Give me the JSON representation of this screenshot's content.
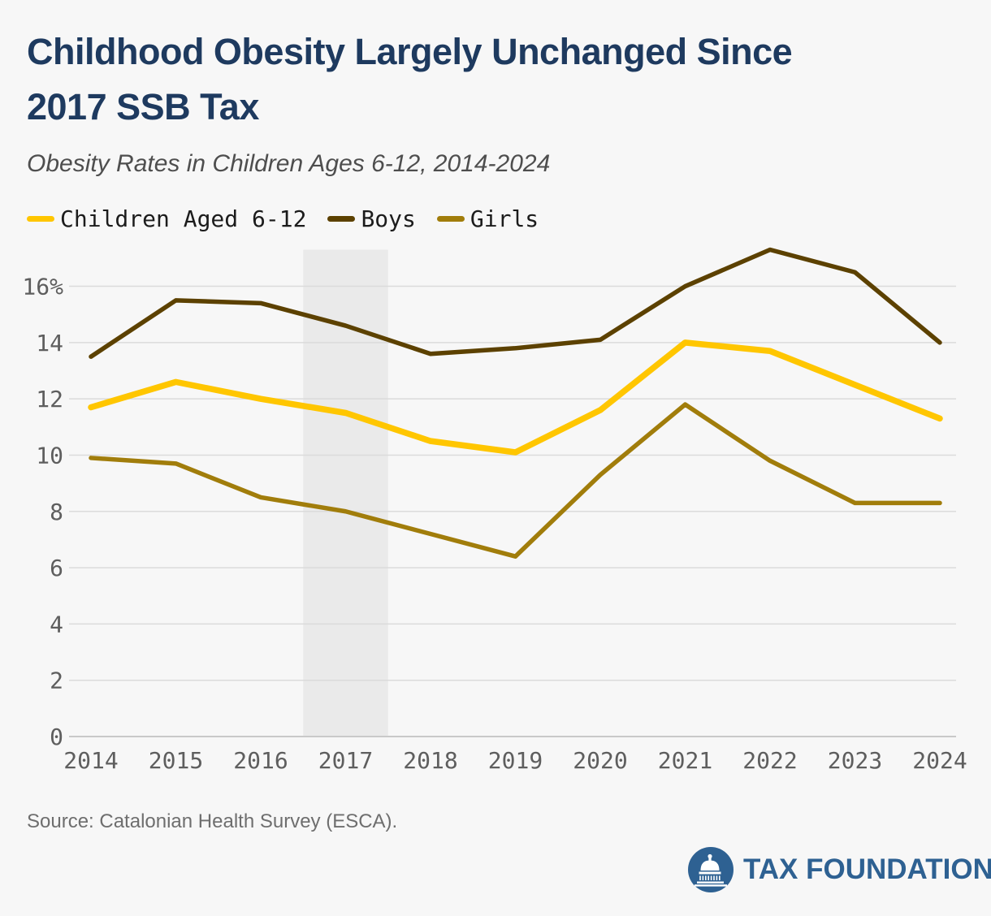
{
  "header": {
    "title_line1": "Childhood Obesity Largely Unchanged Since",
    "title_line2": "2017 SSB Tax",
    "subtitle": "Obesity Rates in Children Ages 6-12, 2014-2024"
  },
  "chart_data": {
    "type": "line",
    "title": "Childhood Obesity Largely Unchanged Since 2017 SSB Tax",
    "subtitle": "Obesity Rates in Children Ages 6-12, 2014-2024",
    "categories": [
      "2014",
      "2015",
      "2016",
      "2017",
      "2018",
      "2019",
      "2020",
      "2021",
      "2022",
      "2023",
      "2024"
    ],
    "series": [
      {
        "name": "Children Aged 6-12",
        "color": "#FFC600",
        "line_width": 7.5,
        "values": [
          11.7,
          12.6,
          12.0,
          11.5,
          10.5,
          10.1,
          11.6,
          14.0,
          13.7,
          12.5,
          11.3
        ]
      },
      {
        "name": "Boys",
        "color": "#5C4100",
        "line_width": 5.5,
        "values": [
          13.5,
          15.5,
          15.4,
          14.6,
          13.6,
          13.8,
          14.1,
          16.0,
          17.3,
          16.5,
          14.0
        ]
      },
      {
        "name": "Girls",
        "color": "#A17D0B",
        "line_width": 5.5,
        "values": [
          9.9,
          9.7,
          8.5,
          8.0,
          7.2,
          6.4,
          9.3,
          11.8,
          9.8,
          8.3,
          8.3
        ]
      }
    ],
    "xlabel": "",
    "ylabel": "",
    "ylim": [
      0,
      17.3
    ],
    "y_ticks": [
      0,
      2,
      4,
      6,
      8,
      10,
      12,
      14,
      16
    ],
    "y_tick_labels": [
      "0",
      "2",
      "4",
      "6",
      "8",
      "10",
      "12",
      "14",
      "16%"
    ],
    "grid": "horizontal",
    "legend_position": "top",
    "highlight_band": {
      "from": 2016.5,
      "to": 2017.5,
      "color": "#EAEAEA"
    },
    "colors": {
      "background": "#F7F7F7",
      "gridline": "#DBDBDB",
      "axis_line": "#C9C9C9",
      "tick_label": "#5E5E5E"
    }
  },
  "footer": {
    "source": "Source: Catalonian Health Survey (ESCA).",
    "logo_text": "TAX FOUNDATION",
    "logo_color": "#2E6192"
  }
}
